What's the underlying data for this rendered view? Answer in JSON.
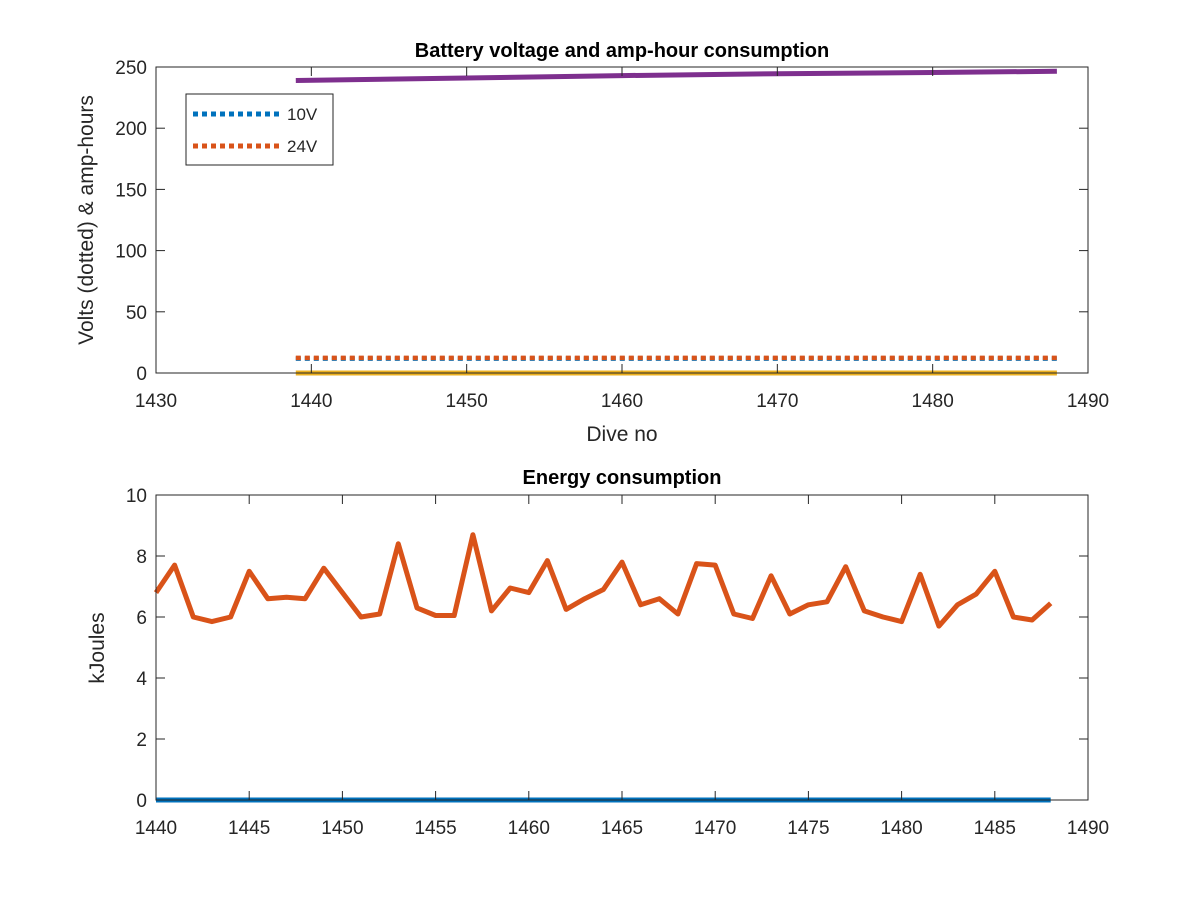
{
  "chart_data": [
    {
      "type": "line",
      "title": "Battery voltage and amp-hour consumption",
      "xlabel": "Dive no",
      "ylabel": "Volts (dotted) & amp-hours",
      "xlim": [
        1430,
        1490
      ],
      "ylim": [
        0,
        250
      ],
      "xticks": [
        "1430",
        "1440",
        "1450",
        "1460",
        "1470",
        "1480",
        "1490"
      ],
      "yticks": [
        "0",
        "50",
        "100",
        "150",
        "200",
        "250"
      ],
      "grid": false,
      "legend_position": "top-left",
      "series": [
        {
          "name": "10V",
          "style": "dotted",
          "color": "#0072BD",
          "x": [
            1439,
            1488
          ],
          "y": [
            11.8,
            11.8
          ]
        },
        {
          "name": "24V",
          "style": "dotted",
          "color": "#D95319",
          "x": [
            1439,
            1488
          ],
          "y": [
            12.3,
            12.3
          ]
        },
        {
          "style": "solid",
          "color": "#EDB120",
          "x": [
            1439,
            1488
          ],
          "y": [
            0,
            0
          ]
        },
        {
          "style": "solid",
          "color": "#7E2F8E",
          "x": [
            1439,
            1450,
            1460,
            1470,
            1480,
            1488
          ],
          "y": [
            239,
            241,
            243,
            244.5,
            245.5,
            246.5
          ]
        }
      ]
    },
    {
      "type": "line",
      "title": "Energy consumption",
      "xlabel": "",
      "ylabel": "kJoules",
      "xlim": [
        1440,
        1490
      ],
      "ylim": [
        0,
        10
      ],
      "xticks": [
        "1440",
        "1445",
        "1450",
        "1455",
        "1460",
        "1465",
        "1470",
        "1475",
        "1480",
        "1485",
        "1490"
      ],
      "yticks": [
        "0",
        "2",
        "4",
        "6",
        "8",
        "10"
      ],
      "grid": false,
      "series": [
        {
          "style": "solid",
          "color": "#D95319",
          "x": [
            1440,
            1441,
            1442,
            1443,
            1444,
            1445,
            1446,
            1447,
            1448,
            1449,
            1450,
            1451,
            1452,
            1453,
            1454,
            1455,
            1456,
            1457,
            1458,
            1459,
            1460,
            1461,
            1462,
            1463,
            1464,
            1465,
            1466,
            1467,
            1468,
            1469,
            1470,
            1471,
            1472,
            1473,
            1474,
            1475,
            1476,
            1477,
            1478,
            1479,
            1480,
            1481,
            1482,
            1483,
            1484,
            1485,
            1486,
            1487,
            1488
          ],
          "y": [
            6.8,
            7.7,
            6.0,
            5.85,
            6.0,
            7.5,
            6.6,
            6.65,
            6.6,
            7.6,
            6.8,
            6.0,
            6.1,
            8.4,
            6.3,
            6.05,
            6.05,
            8.7,
            6.2,
            6.95,
            6.8,
            7.85,
            6.25,
            6.6,
            6.9,
            7.8,
            6.4,
            6.6,
            6.1,
            7.75,
            7.7,
            6.1,
            5.95,
            7.35,
            6.1,
            6.4,
            6.5,
            7.65,
            6.2,
            6.0,
            5.85,
            7.4,
            5.7,
            6.4,
            6.75,
            7.5,
            6.0,
            5.9,
            6.45
          ]
        },
        {
          "style": "solid",
          "color": "#0072BD",
          "x": [
            1440,
            1488
          ],
          "y": [
            0,
            0
          ]
        }
      ]
    }
  ]
}
